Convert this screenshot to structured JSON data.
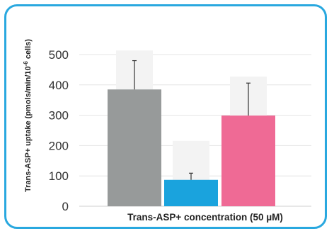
{
  "chart_data": {
    "type": "bar",
    "categories": [
      "",
      "",
      ""
    ],
    "values": [
      385,
      87,
      299
    ],
    "errors": [
      95,
      22,
      107
    ],
    "colors": [
      "#979a9a",
      "#1aa3dd",
      "#ef6a95"
    ],
    "xlabel": "Trans-ASP+ concentration (50 µM)",
    "ylabel": "Trans-ASP+ uptake (pmols/min/10-6 cells)",
    "ylabel_parts": {
      "main": "Trans-ASP+ uptake (pmols/min/10",
      "superscript": "-6",
      "tail": " cells)"
    },
    "ylim": [
      0,
      500
    ],
    "yticks": [
      "0",
      "100",
      "200",
      "300",
      "400",
      "500"
    ],
    "grid": true
  },
  "frame": {
    "border_color": "#29a8df"
  }
}
